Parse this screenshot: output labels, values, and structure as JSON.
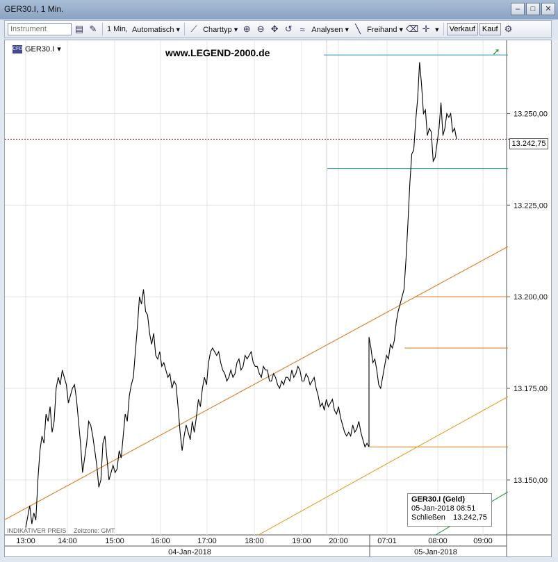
{
  "window": {
    "title": "GER30.I, 1 Min."
  },
  "toolbar": {
    "instrument_placeholder": "Instrument",
    "interval_label": "1 Min,",
    "mode_label": "Automatisch",
    "charttype_label": "Charttyp",
    "analysen_label": "Analysen",
    "freihand_label": "Freihand",
    "verkauf_label": "Verkauf",
    "kauf_label": "Kauf"
  },
  "header": {
    "symbol": "GER30.I",
    "badge": "CFD",
    "watermark": "www.LEGEND-2000.de"
  },
  "info_box": {
    "title": "GER30.I (Geld)",
    "datetime": "05-Jan-2018 08:51",
    "close_label": "Schließen",
    "close_value": "13.242,75"
  },
  "footer": {
    "source": "INDIKATIVER PREIS",
    "timezone": "Zeitzone: GMT"
  },
  "chart_data": {
    "type": "line",
    "title": "",
    "ylim": [
      13135,
      13270
    ],
    "y_ticks": [
      13150,
      13175,
      13200,
      13225,
      13250
    ],
    "y_tick_labels": [
      "13.150,00",
      "13.175,00",
      "13.200,00",
      "13.225,00",
      "13.250,00"
    ],
    "x_tick_labels": [
      "13:00",
      "14:00",
      "15:00",
      "16:00",
      "17:00",
      "18:00",
      "19:00",
      "20:00",
      "07:01",
      "08:00",
      "09:00"
    ],
    "date_labels": [
      "04-Jan-2018",
      "05-Jan-2018"
    ],
    "last_price": 13242.75,
    "last_price_label": "13.242,75",
    "grid": true,
    "series": [
      {
        "values": [
          13137,
          13140,
          13143,
          13138,
          13141,
          13139,
          13150,
          13158,
          13162,
          13160,
          13168,
          13166,
          13170,
          13163,
          13166,
          13175,
          13178,
          13176,
          13180,
          13178,
          13176,
          13171,
          13173,
          13175,
          13176,
          13172,
          13166,
          13160,
          13152,
          13156,
          13160,
          13166,
          13165,
          13162,
          13158,
          13154,
          13148,
          13150,
          13160,
          13162,
          13156,
          13150,
          13152,
          13154,
          13152,
          13153,
          13158,
          13156,
          13162,
          13168,
          13166,
          13173,
          13176,
          13178,
          13185,
          13192,
          13200,
          13198,
          13202,
          13196,
          13195,
          13190,
          13187,
          13190,
          13184,
          13183,
          13185,
          13181,
          13182,
          13180,
          13178,
          13179,
          13175,
          13177,
          13176,
          13170,
          13163,
          13158,
          13162,
          13165,
          13163,
          13161,
          13166,
          13163,
          13167,
          13172,
          13170,
          13175,
          13178,
          13176,
          13182,
          13185,
          13186,
          13185,
          13184,
          13185,
          13182,
          13180,
          13179,
          13177,
          13178,
          13180,
          13178,
          13179,
          13182,
          13183,
          13180,
          13181,
          13184,
          13183,
          13184,
          13185,
          13182,
          13181,
          13181,
          13179,
          13178,
          13181,
          13180,
          13180,
          13177,
          13177,
          13179,
          13178,
          13176,
          13175,
          13177,
          13176,
          13178,
          13178,
          13177,
          13180,
          13178,
          13179,
          13181,
          13180,
          13177,
          13177,
          13179,
          13178,
          13176,
          13177,
          13178,
          13175,
          13173,
          13170,
          13171,
          13169,
          13172,
          13170,
          13171,
          13172,
          13169,
          13168,
          13170,
          13167,
          13165,
          13163,
          13162,
          13163,
          13162,
          13165,
          13163,
          13164,
          13166,
          13163,
          13161,
          13159,
          13160,
          13159,
          13189,
          13186,
          13182,
          13183,
          13180,
          13176,
          13175,
          13178,
          13181,
          13184,
          13183,
          13187,
          13186,
          13188,
          13193,
          13196,
          13198,
          13200,
          13202,
          13210,
          13220,
          13231,
          13239,
          13240,
          13248,
          13254,
          13264,
          13258,
          13250,
          13251,
          13244,
          13246,
          13245,
          13237,
          13238,
          13242,
          13246,
          13253,
          13244,
          13246,
          13250,
          13249,
          13250,
          13245,
          13246,
          13243
        ]
      }
    ],
    "overlay_lines": {
      "horizontal": [
        {
          "y": 13266,
          "color": "#1e9ea8"
        },
        {
          "y": 13235,
          "color": "#1e9ea8"
        },
        {
          "y": 13200,
          "color": "#e07a1f"
        },
        {
          "y": 13186,
          "color": "#e07a1f"
        },
        {
          "y": 13159,
          "color": "#e07a1f"
        },
        {
          "y": 13243,
          "color": "#8b1a1a"
        }
      ],
      "trend": [
        {
          "color": "#e07a1f"
        },
        {
          "color": "#e6a020"
        },
        {
          "color": "#2f9c4c"
        }
      ]
    }
  }
}
